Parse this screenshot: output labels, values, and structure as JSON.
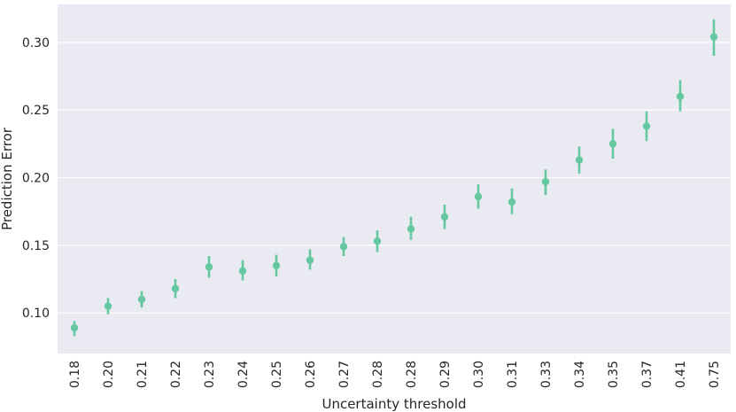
{
  "chart_data": {
    "type": "scatter",
    "style": "pointplot-with-error-bars",
    "xlabel": "Uncertainty threshold",
    "ylabel": "Prediction Error",
    "categories": [
      "0.18",
      "0.20",
      "0.21",
      "0.22",
      "0.23",
      "0.24",
      "0.25",
      "0.26",
      "0.27",
      "0.28",
      "0.28",
      "0.29",
      "0.30",
      "0.31",
      "0.33",
      "0.34",
      "0.35",
      "0.37",
      "0.41",
      "0.75"
    ],
    "values": [
      0.089,
      0.105,
      0.11,
      0.118,
      0.134,
      0.131,
      0.135,
      0.139,
      0.149,
      0.153,
      0.162,
      0.171,
      0.186,
      0.182,
      0.197,
      0.213,
      0.225,
      0.238,
      0.26,
      0.304
    ],
    "error_low": [
      0.083,
      0.099,
      0.104,
      0.111,
      0.126,
      0.124,
      0.127,
      0.132,
      0.142,
      0.145,
      0.154,
      0.162,
      0.177,
      0.173,
      0.187,
      0.203,
      0.214,
      0.227,
      0.249,
      0.29
    ],
    "error_high": [
      0.094,
      0.111,
      0.116,
      0.125,
      0.142,
      0.139,
      0.143,
      0.147,
      0.156,
      0.161,
      0.171,
      0.18,
      0.195,
      0.192,
      0.206,
      0.223,
      0.236,
      0.249,
      0.272,
      0.317
    ],
    "yticks": [
      0.1,
      0.15,
      0.2,
      0.25,
      0.3
    ],
    "ytick_labels": [
      "0.10",
      "0.15",
      "0.20",
      "0.25",
      "0.30"
    ],
    "ylim": [
      0.07,
      0.328
    ],
    "grid": true,
    "colors": {
      "marker": "#66c8a1",
      "plot_background": "#eaeaf2",
      "grid": "#ffffff",
      "text": "#262626"
    }
  }
}
